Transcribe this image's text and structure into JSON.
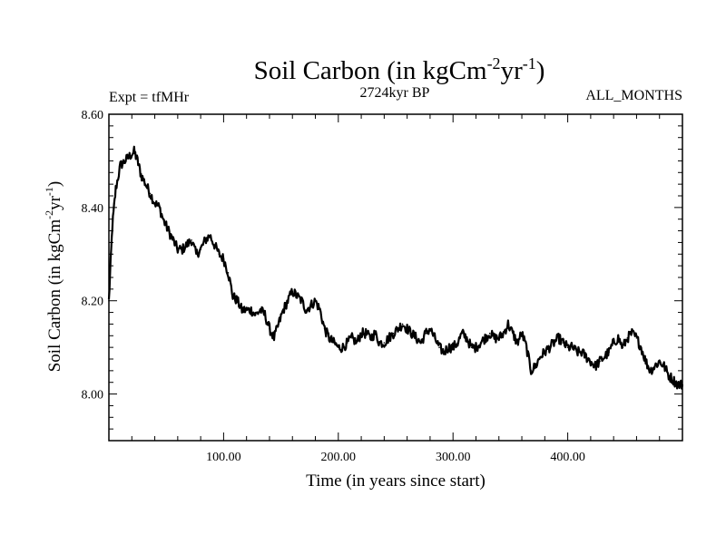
{
  "chart_data": {
    "type": "line",
    "title": "Soil Carbon (in kgCm",
    "title_sup1": "-2",
    "title_mid": "yr",
    "title_sup2": "-1",
    "title_end": ")",
    "left_label": "Expt = tfMHr",
    "center_label": "2724kyr BP",
    "right_label": "ALL_MONTHS",
    "xlabel": "Time (in years since start)",
    "ylabel": "Soil Carbon (in kgCm",
    "ylabel_sup1": "-2",
    "ylabel_mid": "yr",
    "ylabel_sup2": "-1",
    "ylabel_end": ")",
    "xlim": [
      0,
      500
    ],
    "ylim": [
      7.9,
      8.6
    ],
    "xticks": [
      100,
      200,
      300,
      400
    ],
    "xtick_labels": [
      "100.00",
      "200.00",
      "300.00",
      "400.00"
    ],
    "yticks": [
      8.0,
      8.2,
      8.4,
      8.6
    ],
    "ytick_labels": [
      "8.00",
      "8.20",
      "8.40",
      "8.60"
    ],
    "series": [
      {
        "name": "Soil Carbon",
        "color": "#000000",
        "x": [
          0,
          3,
          6,
          10,
          14,
          18,
          22,
          25,
          28,
          32,
          36,
          40,
          44,
          48,
          52,
          56,
          60,
          64,
          68,
          72,
          76,
          80,
          84,
          88,
          92,
          96,
          100,
          104,
          108,
          112,
          116,
          120,
          124,
          128,
          132,
          136,
          140,
          144,
          148,
          152,
          156,
          160,
          164,
          168,
          172,
          176,
          180,
          184,
          188,
          192,
          196,
          200,
          204,
          208,
          212,
          216,
          220,
          224,
          228,
          232,
          236,
          240,
          244,
          248,
          252,
          256,
          260,
          264,
          268,
          272,
          276,
          280,
          284,
          288,
          292,
          296,
          300,
          304,
          308,
          312,
          316,
          320,
          324,
          328,
          332,
          336,
          340,
          344,
          348,
          352,
          356,
          360,
          364,
          368,
          372,
          376,
          380,
          384,
          388,
          392,
          396,
          400,
          404,
          408,
          412,
          416,
          420,
          424,
          428,
          432,
          436,
          440,
          444,
          448,
          452,
          456,
          460,
          464,
          468,
          472,
          476,
          480,
          484,
          488,
          492,
          496,
          500
        ],
        "values": [
          8.2,
          8.36,
          8.44,
          8.49,
          8.5,
          8.51,
          8.52,
          8.5,
          8.47,
          8.45,
          8.43,
          8.41,
          8.4,
          8.37,
          8.35,
          8.33,
          8.31,
          8.31,
          8.32,
          8.33,
          8.3,
          8.31,
          8.33,
          8.34,
          8.32,
          8.3,
          8.29,
          8.26,
          8.21,
          8.2,
          8.18,
          8.18,
          8.18,
          8.17,
          8.18,
          8.17,
          8.14,
          8.12,
          8.15,
          8.18,
          8.2,
          8.22,
          8.21,
          8.2,
          8.18,
          8.19,
          8.2,
          8.18,
          8.14,
          8.12,
          8.11,
          8.1,
          8.1,
          8.11,
          8.12,
          8.11,
          8.13,
          8.13,
          8.12,
          8.13,
          8.11,
          8.11,
          8.12,
          8.13,
          8.14,
          8.15,
          8.14,
          8.13,
          8.12,
          8.11,
          8.13,
          8.14,
          8.12,
          8.1,
          8.09,
          8.1,
          8.1,
          8.11,
          8.13,
          8.12,
          8.1,
          8.1,
          8.11,
          8.12,
          8.13,
          8.12,
          8.12,
          8.13,
          8.15,
          8.13,
          8.11,
          8.13,
          8.1,
          8.05,
          8.06,
          8.08,
          8.09,
          8.1,
          8.11,
          8.12,
          8.11,
          8.1,
          8.1,
          8.09,
          8.09,
          8.08,
          8.07,
          8.06,
          8.07,
          8.08,
          8.09,
          8.11,
          8.12,
          8.1,
          8.12,
          8.13,
          8.12,
          8.1,
          8.07,
          8.05,
          8.06,
          8.07,
          8.06,
          8.04,
          8.03,
          8.02,
          8.02
        ]
      }
    ]
  }
}
